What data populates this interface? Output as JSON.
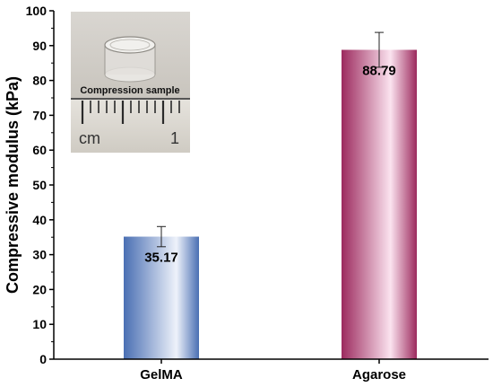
{
  "chart_data": {
    "type": "bar",
    "categories": [
      "GelMA",
      "Agarose"
    ],
    "values": [
      35.17,
      88.79
    ],
    "errors": [
      2.9,
      5.0
    ],
    "data_labels": [
      "35.17",
      "88.79"
    ],
    "title": "",
    "xlabel": "",
    "ylabel": "Compressive modulus (kPa)",
    "ylim": [
      0,
      100
    ],
    "yticks": [
      0,
      10,
      20,
      30,
      40,
      50,
      60,
      70,
      80,
      90,
      100
    ],
    "grid": false,
    "bar_colors": [
      {
        "edge": "#4a6fb3",
        "center": "#eef2fa"
      },
      {
        "edge": "#9c2a5e",
        "center": "#fbe3ef"
      }
    ],
    "inset": {
      "caption": "Compression sample",
      "ruler_unit": "cm",
      "ruler_number": "1"
    }
  }
}
